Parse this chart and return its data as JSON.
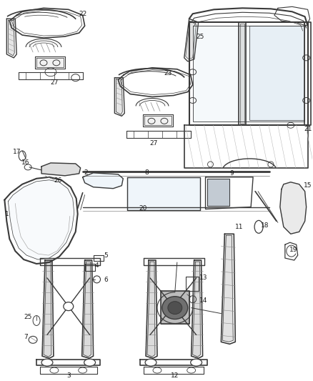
{
  "background_color": "#ffffff",
  "line_color": "#3a3a3a",
  "label_color": "#1a1a1a",
  "label_fontsize": 6.5,
  "fig_width": 4.38,
  "fig_height": 5.33,
  "dpi": 100
}
